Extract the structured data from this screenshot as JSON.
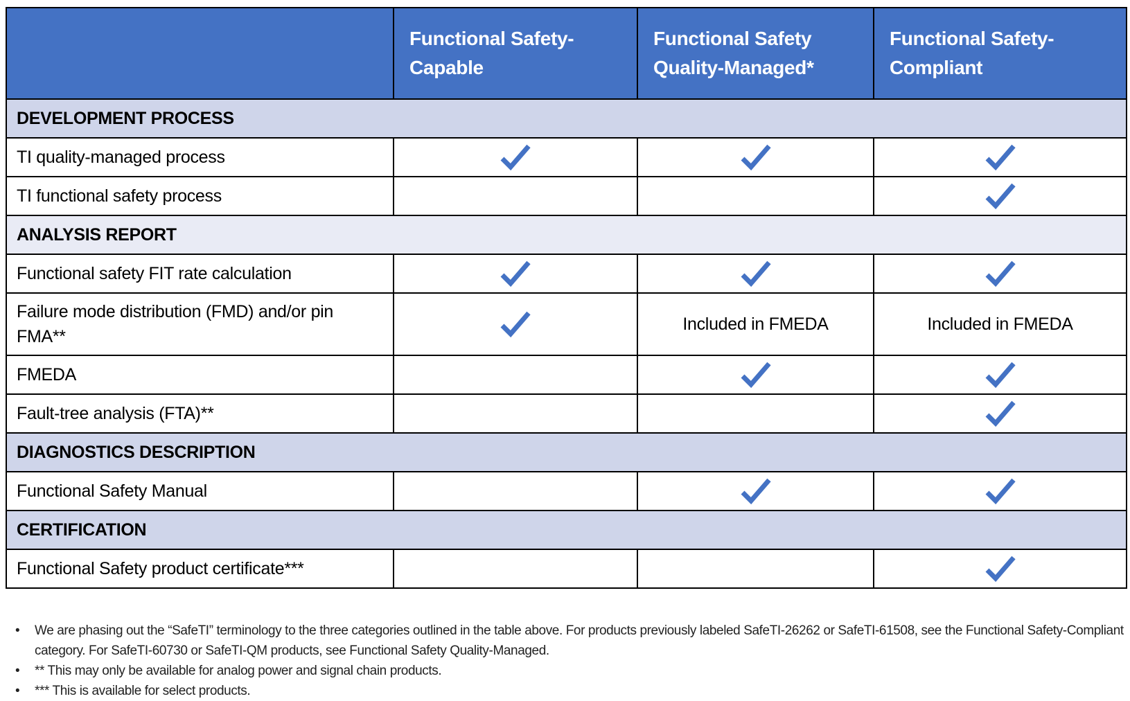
{
  "colors": {
    "header": "#4472C4",
    "section": "#CFD5EA",
    "section_light": "#E9EBF5",
    "check": "#4472C4"
  },
  "columns": [
    "",
    "Functional Safety-Capable",
    "Functional Safety Quality-Managed*",
    "Functional Safety-Compliant"
  ],
  "rows": [
    {
      "type": "section",
      "label": "DEVELOPMENT PROCESS"
    },
    {
      "type": "row",
      "label": "TI quality-managed process",
      "cells": [
        "check",
        "check",
        "check"
      ]
    },
    {
      "type": "row",
      "label": "TI functional safety process",
      "cells": [
        "",
        "",
        "check"
      ]
    },
    {
      "type": "section",
      "label": "ANALYSIS REPORT"
    },
    {
      "type": "row",
      "label": "Functional safety FIT rate calculation",
      "cells": [
        "check",
        "check",
        "check"
      ]
    },
    {
      "type": "row",
      "label": "Failure mode distribution (FMD) and/or pin FMA**",
      "cells": [
        "check",
        "Included in FMEDA",
        "Included in FMEDA"
      ]
    },
    {
      "type": "row",
      "label": "FMEDA",
      "cells": [
        "",
        "check",
        "check"
      ]
    },
    {
      "type": "row",
      "label": "Fault-tree analysis (FTA)**",
      "cells": [
        "",
        "",
        "check"
      ]
    },
    {
      "type": "section",
      "label": "DIAGNOSTICS DESCRIPTION"
    },
    {
      "type": "row",
      "label": "Functional Safety Manual",
      "cells": [
        "",
        "check",
        "check"
      ]
    },
    {
      "type": "section",
      "label": "CERTIFICATION"
    },
    {
      "type": "row",
      "label": "Functional Safety product certificate***",
      "cells": [
        "",
        "",
        "check"
      ]
    }
  ],
  "notes": [
    "We are phasing out the “SafeTI” terminology to the three categories outlined in the table above. For products previously labeled SafeTI-26262 or SafeTI-61508, see the Functional Safety-Compliant category. For SafeTI-60730 or SafeTI-QM products, see Functional Safety Quality-Managed.",
    "** This may only be available for analog power and signal chain products.",
    "*** This is available for select products."
  ],
  "bullet": "•"
}
